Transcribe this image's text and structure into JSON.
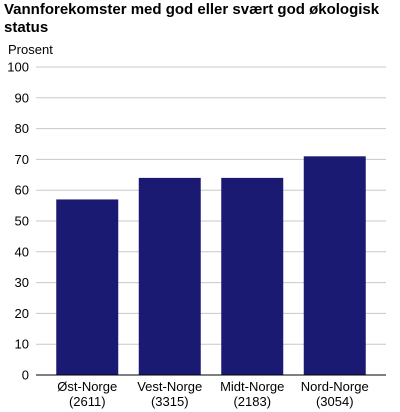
{
  "chart_data": {
    "type": "bar",
    "title": "Vannforekomster med god eller svært god økologisk status",
    "ylabel": "Prosent",
    "xlabel": "",
    "categories": [
      "Øst-Norge",
      "Vest-Norge",
      "Midt-Norge",
      "Nord-Norge"
    ],
    "category_counts": [
      "(2611)",
      "(3315)",
      "(2183)",
      "(3054)"
    ],
    "values": [
      57,
      64,
      64,
      71
    ],
    "ylim": [
      0,
      100
    ],
    "yticks": [
      0,
      10,
      20,
      30,
      40,
      50,
      60,
      70,
      80,
      90,
      100
    ],
    "grid": true,
    "legend": "none",
    "bar_color": "#1a1a72",
    "grid_color": "#c8c8c8"
  }
}
